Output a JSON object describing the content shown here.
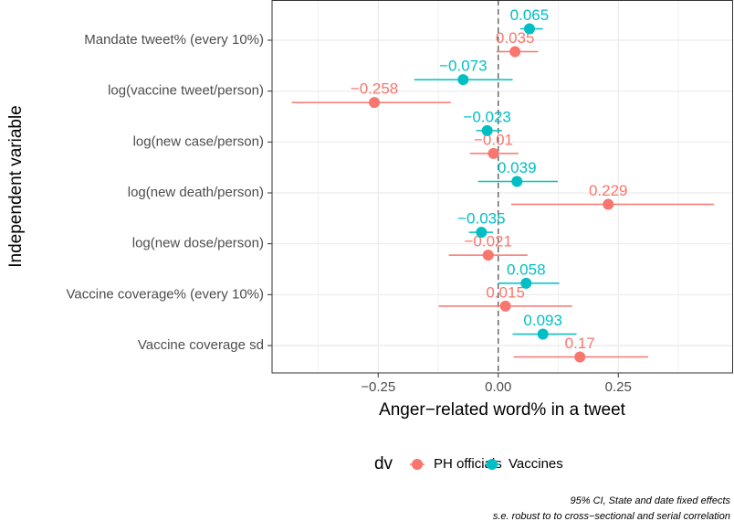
{
  "chart_data": {
    "type": "dotwhisker",
    "xlabel": "Anger−related word% in a tweet",
    "ylabel": "Independent variable",
    "categories": [
      "Mandate tweet% (every 10%)",
      "log(vaccine tweet/person)",
      "log(new case/person)",
      "log(new death/person)",
      "log(new dose/person)",
      "Vaccine coverage% (every 10%)",
      "Vaccine coverage sd"
    ],
    "series": [
      {
        "name": "PH officials",
        "color": "#F8766D",
        "values": [
          0.035,
          -0.258,
          -0.01,
          0.229,
          -0.021,
          0.015,
          0.17
        ],
        "value_labels": [
          "0.035",
          "−0.258",
          "−0.01",
          "0.229",
          "−0.021",
          "0.015",
          "0.17"
        ],
        "ci_low": [
          -0.004,
          -0.43,
          -0.059,
          0.027,
          -0.103,
          -0.124,
          0.032
        ],
        "ci_high": [
          0.083,
          -0.099,
          0.042,
          0.449,
          0.061,
          0.154,
          0.312
        ]
      },
      {
        "name": "Vaccines",
        "color": "#00BFC4",
        "values": [
          0.065,
          -0.073,
          -0.023,
          0.039,
          -0.035,
          0.058,
          0.093
        ],
        "value_labels": [
          "0.065",
          "−0.073",
          "−0.023",
          "0.039",
          "−0.035",
          "0.058",
          "0.093"
        ],
        "ci_low": [
          0.046,
          -0.175,
          -0.046,
          -0.042,
          -0.061,
          0.0,
          0.03
        ],
        "ci_high": [
          0.093,
          0.03,
          0.008,
          0.124,
          -0.011,
          0.127,
          0.163
        ]
      }
    ],
    "xlim": [
      -0.471,
      0.489
    ],
    "xticks": [
      {
        "value": -0.25,
        "label": "−0.25"
      },
      {
        "value": 0,
        "label": "0.00"
      },
      {
        "value": 0.25,
        "label": "0.25"
      }
    ],
    "xminor": [
      -0.375,
      -0.125,
      0.125,
      0.375
    ],
    "reference_line": 0,
    "grid": true,
    "legend_title": "dv",
    "legend": "bottom",
    "caption": [
      "95% CI, State and date fixed effects",
      "s.e. robust to to cross−sectional and serial correlation"
    ]
  }
}
